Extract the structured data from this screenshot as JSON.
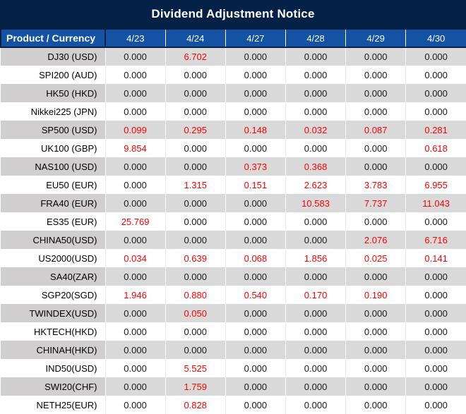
{
  "title": "Dividend Adjustment Notice",
  "colors": {
    "title_bg": "#062148",
    "header_bg": "#1453a4",
    "header_text": "#ffffff",
    "row_stripe_gray": "#d9d9d9",
    "first_col_stripe_gray": "#d0cece",
    "value_black": "#1a1a1a",
    "value_red": "#ff0000"
  },
  "table": {
    "product_header": "Product / Currency",
    "date_columns": [
      "4/23",
      "4/24",
      "4/27",
      "4/28",
      "4/29",
      "4/30"
    ],
    "rows": [
      {
        "product": "DJ30 (USD)",
        "values": [
          "0.000",
          "6.702",
          "0.000",
          "0.000",
          "0.000",
          "0.000"
        ],
        "red": [
          false,
          true,
          false,
          false,
          false,
          false
        ]
      },
      {
        "product": "SPI200 (AUD)",
        "values": [
          "0.000",
          "0.000",
          "0.000",
          "0.000",
          "0.000",
          "0.000"
        ],
        "red": [
          false,
          false,
          false,
          false,
          false,
          false
        ]
      },
      {
        "product": "HK50 (HKD)",
        "values": [
          "0.000",
          "0.000",
          "0.000",
          "0.000",
          "0.000",
          "0.000"
        ],
        "red": [
          false,
          false,
          false,
          false,
          false,
          false
        ]
      },
      {
        "product": "Nikkei225 (JPN)",
        "values": [
          "0.000",
          "0.000",
          "0.000",
          "0.000",
          "0.000",
          "0.000"
        ],
        "red": [
          false,
          false,
          false,
          false,
          false,
          false
        ]
      },
      {
        "product": "SP500 (USD)",
        "values": [
          "0.099",
          "0.295",
          "0.148",
          "0.032",
          "0.087",
          "0.281"
        ],
        "red": [
          true,
          true,
          true,
          true,
          true,
          true
        ]
      },
      {
        "product": "UK100 (GBP)",
        "values": [
          "9.854",
          "0.000",
          "0.000",
          "0.000",
          "0.000",
          "0.618"
        ],
        "red": [
          true,
          false,
          false,
          false,
          false,
          true
        ]
      },
      {
        "product": "NAS100 (USD)",
        "values": [
          "0.000",
          "0.000",
          "0.373",
          "0.368",
          "0.000",
          "0.000"
        ],
        "red": [
          false,
          false,
          true,
          true,
          false,
          false
        ]
      },
      {
        "product": "EU50 (EUR)",
        "values": [
          "0.000",
          "1.315",
          "0.151",
          "2.623",
          "3.783",
          "6.955"
        ],
        "red": [
          false,
          true,
          true,
          true,
          true,
          true
        ]
      },
      {
        "product": "FRA40 (EUR)",
        "values": [
          "0.000",
          "0.000",
          "0.000",
          "10.583",
          "7.737",
          "11.043"
        ],
        "red": [
          false,
          false,
          false,
          true,
          true,
          true
        ]
      },
      {
        "product": "ES35 (EUR)",
        "values": [
          "25.769",
          "0.000",
          "0.000",
          "0.000",
          "0.000",
          "0.000"
        ],
        "red": [
          true,
          false,
          false,
          false,
          false,
          false
        ]
      },
      {
        "product": "CHINA50(USD)",
        "values": [
          "0.000",
          "0.000",
          "0.000",
          "0.000",
          "2.076",
          "6.716"
        ],
        "red": [
          false,
          false,
          false,
          false,
          true,
          true
        ]
      },
      {
        "product": "US2000(USD)",
        "values": [
          "0.034",
          "0.639",
          "0.068",
          "1.856",
          "0.025",
          "0.141"
        ],
        "red": [
          true,
          true,
          true,
          true,
          true,
          true
        ]
      },
      {
        "product": "SA40(ZAR)",
        "values": [
          "0.000",
          "0.000",
          "0.000",
          "0.000",
          "0.000",
          "0.000"
        ],
        "red": [
          false,
          false,
          false,
          false,
          false,
          false
        ]
      },
      {
        "product": "SGP20(SGD)",
        "values": [
          "1.946",
          "0.880",
          "0.540",
          "0.170",
          "0.190",
          "0.000"
        ],
        "red": [
          true,
          true,
          true,
          true,
          true,
          false
        ]
      },
      {
        "product": "TWINDEX(USD)",
        "values": [
          "0.000",
          "0.050",
          "0.000",
          "0.000",
          "0.000",
          "0.000"
        ],
        "red": [
          false,
          true,
          false,
          false,
          false,
          false
        ]
      },
      {
        "product": "HKTECH(HKD)",
        "values": [
          "0.000",
          "0.000",
          "0.000",
          "0.000",
          "0.000",
          "0.000"
        ],
        "red": [
          false,
          false,
          false,
          false,
          false,
          false
        ]
      },
      {
        "product": "CHINAH(HKD)",
        "values": [
          "0.000",
          "0.000",
          "0.000",
          "0.000",
          "0.000",
          "0.000"
        ],
        "red": [
          false,
          false,
          false,
          false,
          false,
          false
        ]
      },
      {
        "product": "IND50(USD)",
        "values": [
          "0.000",
          "5.525",
          "0.000",
          "0.000",
          "0.000",
          "0.000"
        ],
        "red": [
          false,
          true,
          false,
          false,
          false,
          false
        ]
      },
      {
        "product": "SWI20(CHF)",
        "values": [
          "0.000",
          "1.759",
          "0.000",
          "0.000",
          "0.000",
          "0.000"
        ],
        "red": [
          false,
          true,
          false,
          false,
          false,
          false
        ]
      },
      {
        "product": "NETH25(EUR)",
        "values": [
          "0.000",
          "0.828",
          "0.000",
          "0.000",
          "0.000",
          "0.000"
        ],
        "red": [
          false,
          true,
          false,
          false,
          false,
          false
        ]
      }
    ]
  }
}
